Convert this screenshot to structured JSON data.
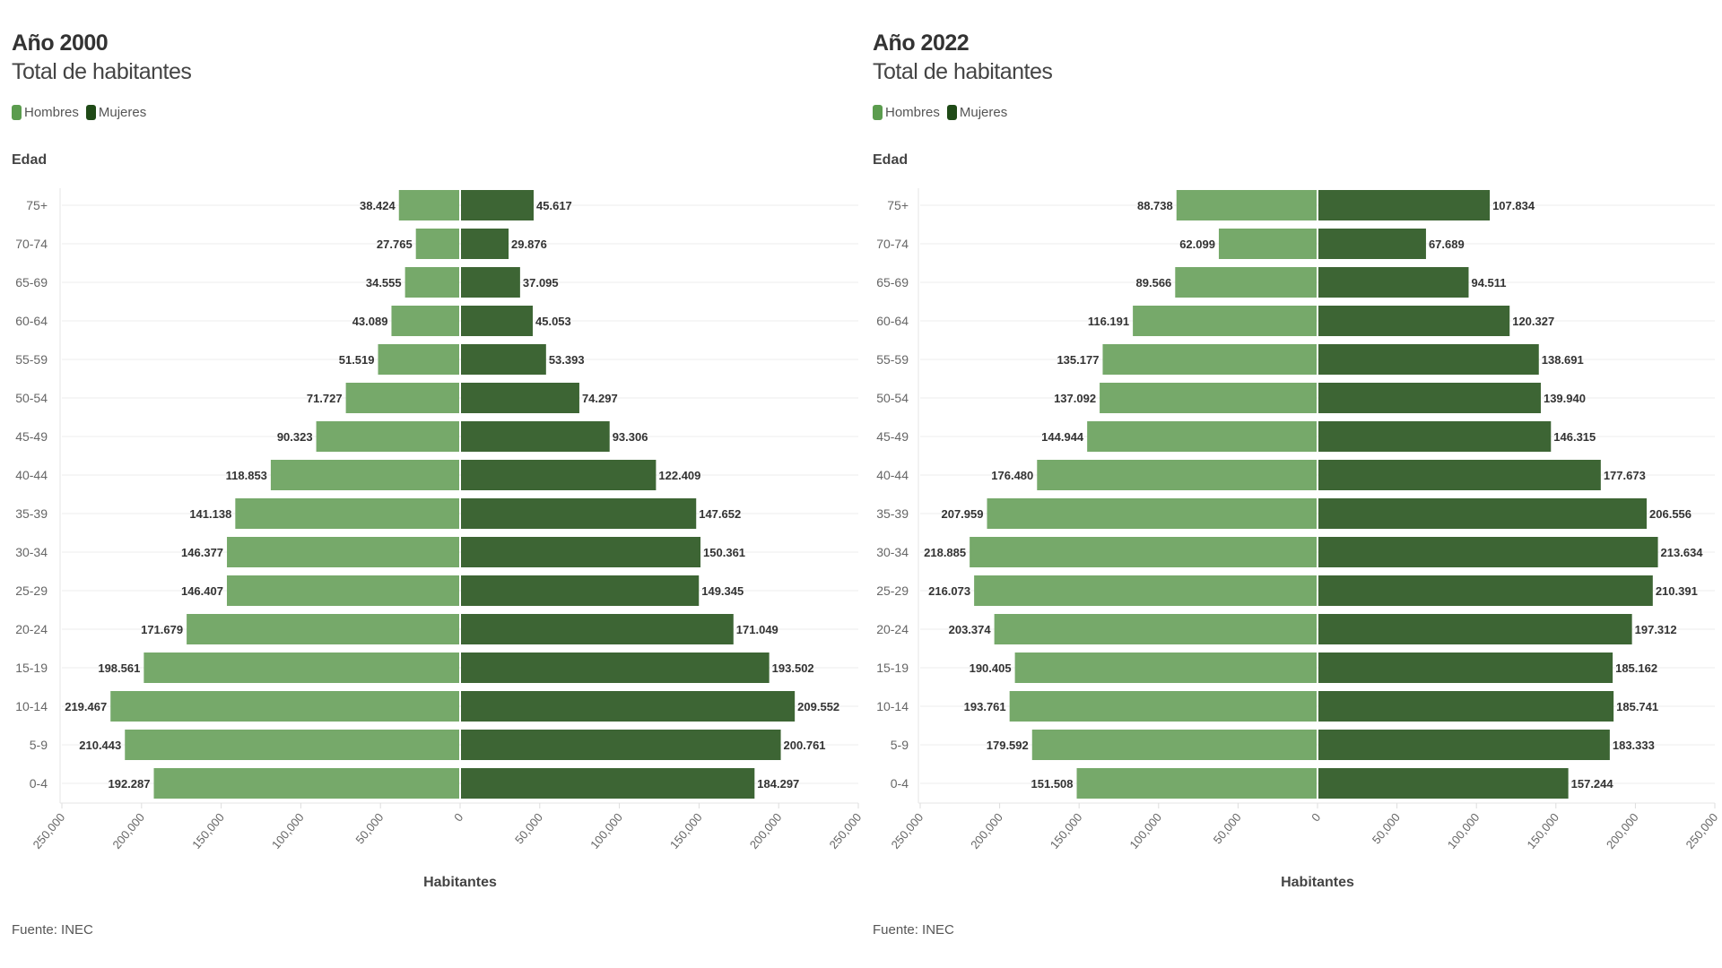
{
  "colors": {
    "hombres": "#76a96a",
    "mujeres": "#3d6534",
    "legend_hombres": "#5b9c4e",
    "legend_mujeres": "#1f4a17"
  },
  "chart_data": [
    {
      "type": "bar",
      "orientation": "horizontal-population-pyramid",
      "title": "Año 2000",
      "subtitle": "Total de habitantes",
      "ylabel": "Edad",
      "xlabel": "Habitantes",
      "source": "Fuente: INEC",
      "legend": [
        "Hombres",
        "Mujeres"
      ],
      "legend_position": "top-left",
      "xlim": [
        -250000,
        250000
      ],
      "x_ticks": [
        "250,000",
        "200,000",
        "150,000",
        "100,000",
        "50,000",
        "0",
        "50,000",
        "100,000",
        "150,000",
        "200,000",
        "250,000"
      ],
      "grid": true,
      "categories": [
        "75+",
        "70-74",
        "65-69",
        "60-64",
        "55-59",
        "50-54",
        "45-49",
        "40-44",
        "35-39",
        "30-34",
        "25-29",
        "20-24",
        "15-19",
        "10-14",
        "5-9",
        "0-4"
      ],
      "series": [
        {
          "name": "Hombres",
          "values": [
            38424,
            27765,
            34555,
            43089,
            51519,
            71727,
            90323,
            118853,
            141138,
            146377,
            146407,
            171679,
            198561,
            219467,
            210443,
            192287
          ],
          "labels": [
            "38.424",
            "27.765",
            "34.555",
            "43.089",
            "51.519",
            "71.727",
            "90.323",
            "118.853",
            "141.138",
            "146.377",
            "146.407",
            "171.679",
            "198.561",
            "219.467",
            "210.443",
            "192.287"
          ]
        },
        {
          "name": "Mujeres",
          "values": [
            45617,
            29876,
            37095,
            45053,
            53393,
            74297,
            93306,
            122409,
            147652,
            150361,
            149345,
            171049,
            193502,
            209552,
            200761,
            184297
          ],
          "labels": [
            "45.617",
            "29.876",
            "37.095",
            "45.053",
            "53.393",
            "74.297",
            "93.306",
            "122.409",
            "147.652",
            "150.361",
            "149.345",
            "171.049",
            "193.502",
            "209.552",
            "200.761",
            "184.297"
          ]
        }
      ]
    },
    {
      "type": "bar",
      "orientation": "horizontal-population-pyramid",
      "title": "Año 2022",
      "subtitle": "Total de habitantes",
      "ylabel": "Edad",
      "xlabel": "Habitantes",
      "source": "Fuente: INEC",
      "legend": [
        "Hombres",
        "Mujeres"
      ],
      "legend_position": "top-left",
      "xlim": [
        -250000,
        250000
      ],
      "x_ticks": [
        "250,000",
        "200,000",
        "150,000",
        "100,000",
        "50,000",
        "0",
        "50,000",
        "100,000",
        "150,000",
        "200,000",
        "250,000"
      ],
      "grid": true,
      "categories": [
        "75+",
        "70-74",
        "65-69",
        "60-64",
        "55-59",
        "50-54",
        "45-49",
        "40-44",
        "35-39",
        "30-34",
        "25-29",
        "20-24",
        "15-19",
        "10-14",
        "5-9",
        "0-4"
      ],
      "series": [
        {
          "name": "Hombres",
          "values": [
            88738,
            62099,
            89566,
            116191,
            135177,
            137092,
            144944,
            176480,
            207959,
            218885,
            216073,
            203374,
            190405,
            193761,
            179592,
            151508
          ],
          "labels": [
            "88.738",
            "62.099",
            "89.566",
            "116.191",
            "135.177",
            "137.092",
            "144.944",
            "176.480",
            "207.959",
            "218.885",
            "216.073",
            "203.374",
            "190.405",
            "193.761",
            "179.592",
            "151.508"
          ]
        },
        {
          "name": "Mujeres",
          "values": [
            107834,
            67689,
            94511,
            120327,
            138691,
            139940,
            146315,
            177673,
            206556,
            213634,
            210391,
            197312,
            185162,
            185741,
            183333,
            157244
          ],
          "labels": [
            "107.834",
            "67.689",
            "94.511",
            "120.327",
            "138.691",
            "139.940",
            "146.315",
            "177.673",
            "206.556",
            "213.634",
            "210.391",
            "197.312",
            "185.162",
            "185.741",
            "183.333",
            "157.244"
          ]
        }
      ]
    }
  ]
}
